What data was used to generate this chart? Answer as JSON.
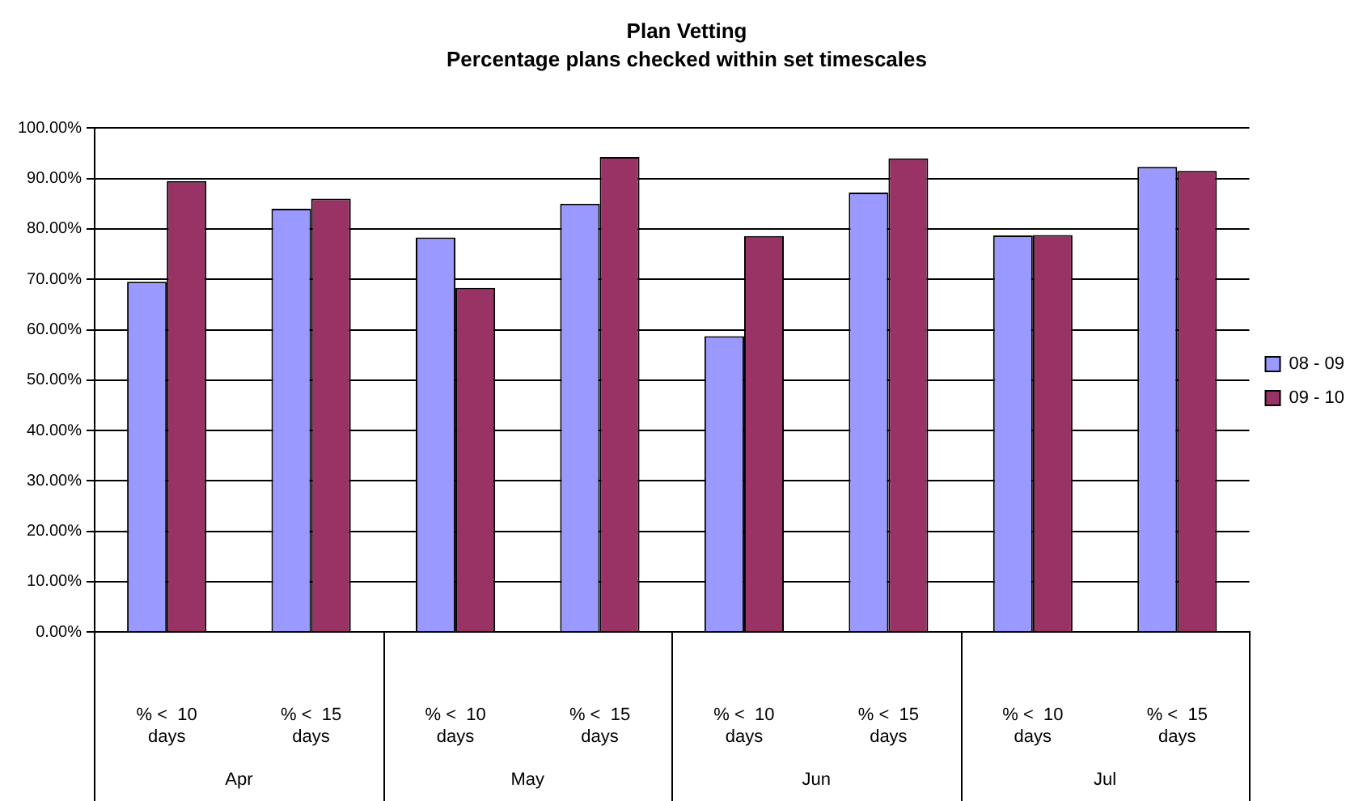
{
  "chart_data": {
    "type": "bar",
    "title": "Plan Vetting",
    "subtitle": "Percentage plans checked within set timescales",
    "categories": [
      "% <  10 days",
      "% <  15 days",
      "% <  10 days",
      "% <  15 days",
      "% <  10 days",
      "% <  15 days",
      "% <  10 days",
      "% <  15 days"
    ],
    "annotations": [
      "Apr",
      "May",
      "Jun",
      "Jul"
    ],
    "series": [
      {
        "name": "08 - 09",
        "color": "#9999ff",
        "values": [
          69.5,
          84,
          78.3,
          85,
          58.7,
          87.2,
          78.7,
          92.3
        ]
      },
      {
        "name": "09 - 10",
        "color": "#993366",
        "values": [
          89.5,
          86,
          68.3,
          94.3,
          78.6,
          94,
          78.8,
          91.5
        ]
      }
    ],
    "ylim": [
      0,
      100
    ],
    "yticks": [
      {
        "value": 0,
        "label": "0.00%"
      },
      {
        "value": 10,
        "label": "10.00%"
      },
      {
        "value": 20,
        "label": "20.00%"
      },
      {
        "value": 30,
        "label": "30.00%"
      },
      {
        "value": 40,
        "label": "40.00%"
      },
      {
        "value": 50,
        "label": "50.00%"
      },
      {
        "value": 60,
        "label": "60.00%"
      },
      {
        "value": 70,
        "label": "70.00%"
      },
      {
        "value": 80,
        "label": "80.00%"
      },
      {
        "value": 90,
        "label": "90.00%"
      },
      {
        "value": 100,
        "label": "100.00%"
      }
    ],
    "grid": "y",
    "legend": "right"
  }
}
